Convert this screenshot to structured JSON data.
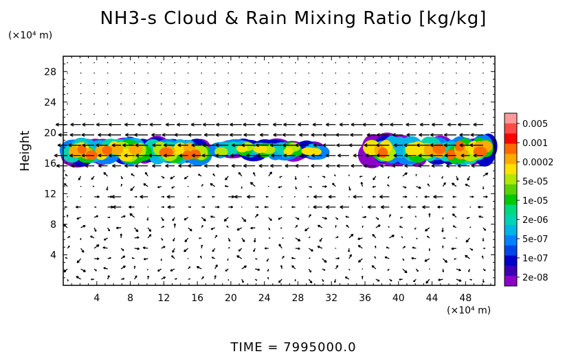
{
  "chart_data": {
    "type": "heatmap",
    "title": "NH3-s Cloud & Rain Mixing Ratio [kg/kg]",
    "xlabel": "",
    "x_unit_label": "(×10⁴ m)",
    "ylabel": "Height",
    "y_unit_label": "(×10⁴ m)",
    "xlim": [
      0,
      51.5
    ],
    "ylim": [
      0,
      30
    ],
    "x_ticks": [
      "4",
      "8",
      "12",
      "16",
      "20",
      "24",
      "28",
      "32",
      "36",
      "40",
      "44",
      "48"
    ],
    "y_ticks": [
      "4",
      "8",
      "12",
      "16",
      "20",
      "24",
      "28"
    ],
    "footer": "TIME = 7995000.0",
    "colorbar": {
      "labels": [
        "0.005",
        "0.001",
        "0.0002",
        "5e-05",
        "1e-05",
        "2e-06",
        "5e-07",
        "1e-07",
        "2e-08"
      ],
      "colors": [
        "#ff9a9a",
        "#ff4a4a",
        "#ff0000",
        "#ff6a00",
        "#ffaa00",
        "#ffe100",
        "#b4e600",
        "#5ad200",
        "#00c800",
        "#00d87c",
        "#00d2b4",
        "#00b4e6",
        "#0082ff",
        "#0046e6",
        "#0000c8",
        "#3c00b4",
        "#8c00c8"
      ]
    },
    "cloud_bands": [
      {
        "x_start": 0,
        "x_end": 17.5,
        "y_bottom": 16.0,
        "y_top": 19.2,
        "max_level": "0.0002"
      },
      {
        "x_start": 18,
        "x_end": 31,
        "y_bottom": 16.6,
        "y_top": 19.0,
        "max_level": "5e-05"
      },
      {
        "x_start": 36,
        "x_end": 51.5,
        "y_bottom": 16.0,
        "y_top": 19.5,
        "max_level": "0.0002"
      }
    ],
    "wind_vectors": "quiver field over full domain; strongest westward flow near 16-21 (x10^4 m) and ~11 (x10^4 m)"
  }
}
